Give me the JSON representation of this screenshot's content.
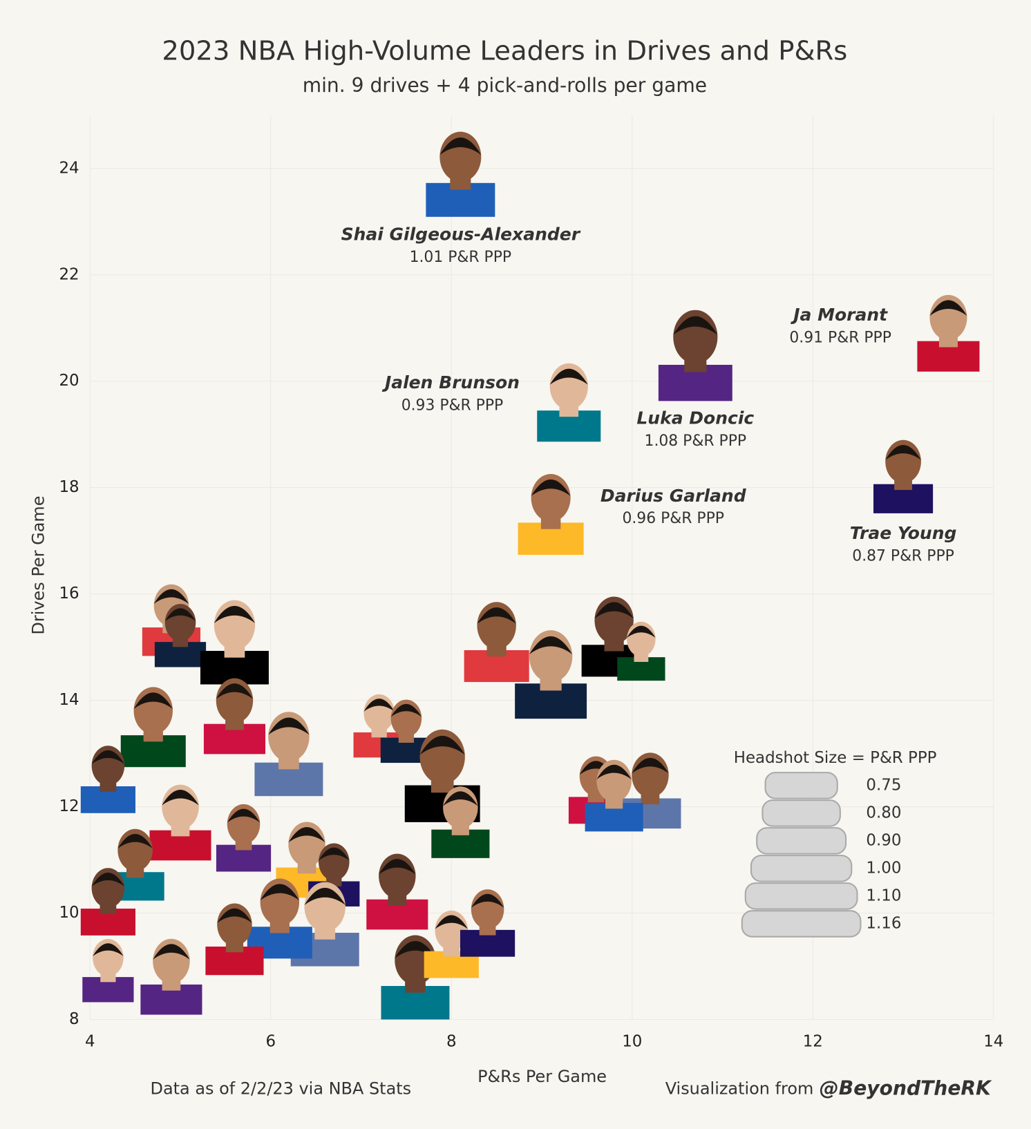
{
  "chart_data": {
    "type": "scatter",
    "title": "2023 NBA High-Volume Leaders in Drives and P&Rs",
    "subtitle": "min. 9 drives + 4 pick-and-rolls per game",
    "xlabel": "P&Rs Per Game",
    "ylabel": "Drives Per Game",
    "xlim": [
      4,
      14
    ],
    "ylim": [
      8,
      25
    ],
    "xticks": [
      4,
      6,
      8,
      10,
      12,
      14
    ],
    "yticks": [
      8,
      10,
      12,
      14,
      16,
      18,
      20,
      22,
      24
    ],
    "grid": true,
    "labels": [
      "Shai Gilgeous-Alexander",
      "Ja Morant",
      "Luka Doncic",
      "Jalen Brunson",
      "Darius Garland",
      "Trae Young",
      null,
      null,
      null,
      null,
      null,
      null,
      null,
      null,
      null,
      null,
      null,
      null,
      null,
      null,
      null,
      null,
      null,
      null,
      null,
      null,
      null,
      null,
      null,
      null,
      null,
      null,
      null,
      null,
      null,
      null,
      null,
      null,
      null
    ],
    "x": [
      8.1,
      13.5,
      10.7,
      9.3,
      9.1,
      13.0,
      4.9,
      5.0,
      5.6,
      4.7,
      5.6,
      6.2,
      4.2,
      5.0,
      5.7,
      4.5,
      6.4,
      6.7,
      7.2,
      7.5,
      7.9,
      8.1,
      7.4,
      6.6,
      6.1,
      5.6,
      4.9,
      7.6,
      8.0,
      8.4,
      8.5,
      9.1,
      9.8,
      10.1,
      9.6,
      10.2,
      9.8,
      4.2,
      4.2
    ],
    "y": [
      24.0,
      21.0,
      20.6,
      19.7,
      17.6,
      18.3,
      15.6,
      15.3,
      15.2,
      13.6,
      13.8,
      13.1,
      12.6,
      11.8,
      11.5,
      11.0,
      11.1,
      10.8,
      13.6,
      13.5,
      12.7,
      11.8,
      10.5,
      9.9,
      10.0,
      9.6,
      8.9,
      8.9,
      9.5,
      9.9,
      15.2,
      14.6,
      15.3,
      15.0,
      12.4,
      12.4,
      12.3,
      10.3,
      9.0
    ],
    "sizes": [
      1.01,
      0.91,
      1.08,
      0.93,
      0.96,
      0.87,
      0.85,
      0.75,
      1.0,
      0.95,
      0.9,
      1.0,
      0.8,
      0.9,
      0.8,
      0.85,
      0.9,
      0.75,
      0.75,
      0.75,
      1.1,
      0.85,
      0.9,
      1.0,
      0.95,
      0.85,
      0.9,
      1.0,
      0.8,
      0.8,
      0.95,
      1.05,
      0.95,
      0.7,
      0.8,
      0.9,
      0.85,
      0.8,
      0.75
    ],
    "value_labels": [
      "1.01 P&R PPP",
      "0.91 P&R PPP",
      "1.08 P&R PPP",
      "0.93 P&R PPP",
      "0.96 P&R PPP",
      "0.87 P&R PPP",
      null,
      null,
      null,
      null,
      null,
      null,
      null,
      null,
      null,
      null,
      null,
      null,
      null,
      null,
      null,
      null,
      null,
      null,
      null,
      null,
      null,
      null,
      null,
      null,
      null,
      null,
      null,
      null,
      null,
      null,
      null,
      null,
      null
    ],
    "size_legend": {
      "title": "Headshot Size = P&R PPP",
      "values": [
        0.75,
        0.8,
        0.9,
        1.0,
        1.1,
        1.16
      ],
      "value_labels": [
        "0.75",
        "0.80",
        "0.90",
        "1.00",
        "1.10",
        "1.16"
      ]
    },
    "note": "Data as of 2/2/23 via NBA Stats",
    "credit_prefix": "Visualization from",
    "credit_handle": "@BeyondTheRK"
  }
}
